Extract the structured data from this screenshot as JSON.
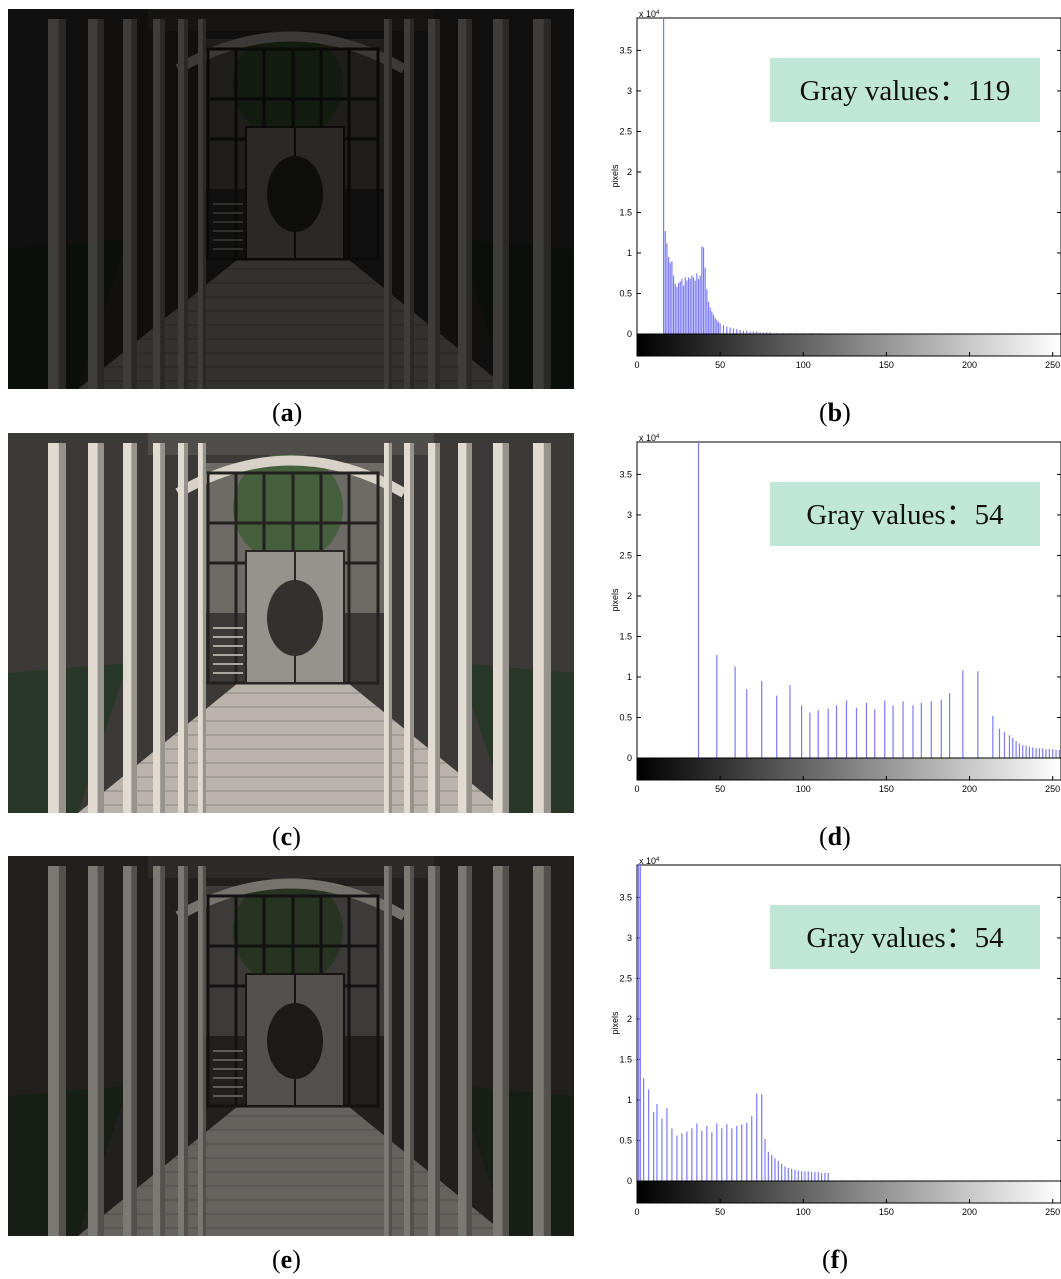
{
  "panels": [
    {
      "id": "a",
      "caption": "a",
      "image": "dark underexposed covered walkway photo",
      "brightness": 0.28
    },
    {
      "id": "b",
      "caption": "b",
      "chart_index": 0
    },
    {
      "id": "c",
      "caption": "c",
      "image": "bright enhanced covered walkway photo",
      "brightness": 1.0
    },
    {
      "id": "d",
      "caption": "d",
      "chart_index": 1
    },
    {
      "id": "e",
      "caption": "e",
      "image": "moderately enhanced covered walkway photo",
      "brightness": 0.55
    },
    {
      "id": "f",
      "caption": "f",
      "chart_index": 2
    }
  ],
  "colors": {
    "bar": "#7b7bf5",
    "box_bg": "#bfe6d6",
    "axis": "#000000"
  },
  "chart_data": [
    {
      "type": "bar",
      "annotation": "Gray values：119",
      "ylabel": "pixels",
      "scale_label": "x 10",
      "scale_exp": "4",
      "xticks": [
        0,
        50,
        100,
        150,
        200,
        250
      ],
      "yticks": [
        "0",
        "0.5",
        "1",
        "1.5",
        "2",
        "2.5",
        "3",
        "3.5"
      ],
      "xlim": [
        0,
        255
      ],
      "ylim": [
        0,
        3.9
      ],
      "grayscale_bar": true,
      "x": [
        16,
        17,
        18,
        19,
        20,
        21,
        22,
        23,
        24,
        25,
        26,
        27,
        28,
        29,
        30,
        31,
        32,
        33,
        34,
        35,
        36,
        37,
        38,
        39,
        40,
        41,
        42,
        43,
        44,
        45,
        46,
        47,
        48,
        49,
        50,
        52,
        54,
        56,
        58,
        60,
        62,
        64,
        66,
        68,
        70,
        72,
        74,
        76,
        78,
        80,
        84,
        88,
        92,
        96,
        100,
        105,
        110,
        115,
        120
      ],
      "values": [
        3.9,
        1.27,
        1.12,
        0.95,
        0.88,
        0.9,
        0.72,
        0.62,
        0.58,
        0.63,
        0.65,
        0.68,
        0.6,
        0.7,
        0.66,
        0.7,
        0.68,
        0.72,
        0.7,
        0.66,
        0.75,
        0.68,
        0.72,
        1.08,
        1.07,
        0.82,
        0.55,
        0.4,
        0.33,
        0.28,
        0.24,
        0.2,
        0.17,
        0.15,
        0.13,
        0.11,
        0.09,
        0.08,
        0.07,
        0.06,
        0.05,
        0.04,
        0.04,
        0.03,
        0.03,
        0.03,
        0.02,
        0.02,
        0.02,
        0.02,
        0.01,
        0.01,
        0.01,
        0.01,
        0.01,
        0.01,
        0.01,
        0.005,
        0.005
      ]
    },
    {
      "type": "bar",
      "annotation": "Gray values：54",
      "ylabel": "pixels",
      "scale_label": "x 10",
      "scale_exp": "4",
      "xticks": [
        0,
        50,
        100,
        150,
        200,
        250
      ],
      "yticks": [
        "0",
        "0.5",
        "1",
        "1.5",
        "2",
        "2.5",
        "3",
        "3.5"
      ],
      "xlim": [
        0,
        255
      ],
      "ylim": [
        0,
        3.9
      ],
      "grayscale_bar": true,
      "x": [
        37,
        48,
        59,
        66,
        75,
        84,
        92,
        99,
        104,
        109,
        115,
        120,
        126,
        132,
        138,
        143,
        149,
        154,
        160,
        166,
        171,
        177,
        183,
        188,
        196,
        205,
        214,
        218,
        221,
        224,
        226,
        228,
        230,
        232,
        234,
        236,
        238,
        240,
        242,
        244,
        246,
        248,
        250,
        252,
        254
      ],
      "values": [
        3.9,
        1.27,
        1.13,
        0.85,
        0.95,
        0.77,
        0.9,
        0.65,
        0.56,
        0.59,
        0.61,
        0.65,
        0.71,
        0.62,
        0.68,
        0.6,
        0.71,
        0.65,
        0.7,
        0.65,
        0.68,
        0.7,
        0.72,
        0.8,
        1.08,
        1.07,
        0.52,
        0.36,
        0.32,
        0.28,
        0.25,
        0.21,
        0.18,
        0.16,
        0.15,
        0.14,
        0.13,
        0.12,
        0.12,
        0.12,
        0.11,
        0.11,
        0.11,
        0.1,
        0.1
      ]
    },
    {
      "type": "bar",
      "annotation": "Gray values：54",
      "ylabel": "pixels",
      "scale_label": "x 10",
      "scale_exp": "4",
      "xticks": [
        0,
        50,
        100,
        150,
        200,
        250
      ],
      "yticks": [
        "0",
        "0.5",
        "1",
        "1.5",
        "2",
        "2.5",
        "3",
        "3.5"
      ],
      "xlim": [
        0,
        255
      ],
      "ylim": [
        0,
        3.9
      ],
      "grayscale_bar": true,
      "x": [
        1,
        2,
        4,
        7,
        10,
        12,
        15,
        18,
        21,
        24,
        27,
        30,
        33,
        36,
        39,
        42,
        45,
        48,
        51,
        54,
        57,
        60,
        63,
        66,
        69,
        72,
        75,
        77,
        79,
        81,
        83,
        85,
        87,
        89,
        91,
        93,
        95,
        97,
        99,
        101,
        103,
        105,
        107,
        109,
        111,
        113,
        115
      ],
      "values": [
        3.9,
        3.9,
        1.27,
        1.13,
        0.85,
        0.95,
        0.77,
        0.9,
        0.65,
        0.56,
        0.59,
        0.61,
        0.65,
        0.71,
        0.62,
        0.68,
        0.6,
        0.71,
        0.65,
        0.7,
        0.65,
        0.68,
        0.7,
        0.72,
        0.8,
        1.08,
        1.07,
        0.52,
        0.36,
        0.32,
        0.28,
        0.25,
        0.21,
        0.18,
        0.16,
        0.15,
        0.14,
        0.13,
        0.12,
        0.12,
        0.12,
        0.11,
        0.11,
        0.11,
        0.1,
        0.1,
        0.1
      ]
    }
  ]
}
